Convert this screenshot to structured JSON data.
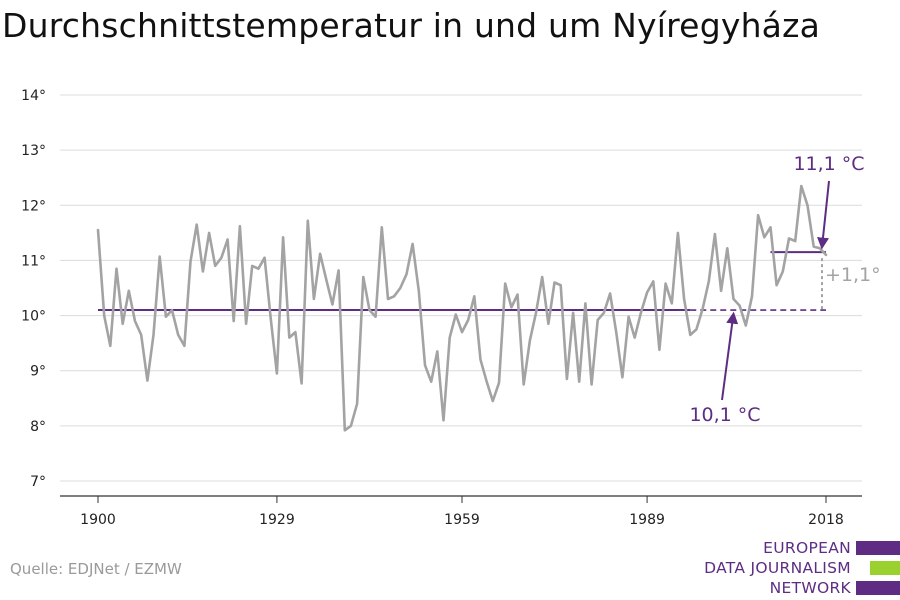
{
  "title": "Durchschnittstemperatur in und um Nyíregyháza",
  "source": "Quelle: EDJNet / EZMW",
  "logo": {
    "lines": [
      "EUROPEAN",
      "DATA JOURNALISM",
      "NETWORK"
    ],
    "colors": [
      "#5e2d83",
      "#9bd12f",
      "#5e2d83"
    ]
  },
  "colors": {
    "line": "#a3a3a3",
    "accent": "#5e2d83",
    "grid": "#dcdcdc",
    "axis": "#333333",
    "annotation_gray": "#a3a3a3"
  },
  "chart_data": {
    "type": "line",
    "title": "Durchschnittstemperatur in und um Nyíregyháza",
    "xlabel": "",
    "ylabel": "",
    "xlim": [
      1900,
      2018
    ],
    "ylim": [
      7,
      14
    ],
    "x_ticks": [
      1900,
      1929,
      1959,
      1989,
      2018
    ],
    "y_ticks": [
      7,
      8,
      9,
      10,
      11,
      12,
      13,
      14
    ],
    "y_tick_labels": [
      "7°",
      "8°",
      "9°",
      "10°",
      "11°",
      "12°",
      "13°",
      "14°"
    ],
    "grid": true,
    "series": [
      {
        "x": [
          1900,
          1901,
          1902,
          1903,
          1904,
          1905,
          1906,
          1907,
          1908,
          1909,
          1910,
          1911,
          1912,
          1913,
          1914,
          1915,
          1916,
          1917,
          1918,
          1919,
          1920,
          1921,
          1922,
          1923,
          1924,
          1925,
          1926,
          1927,
          1928,
          1929,
          1930,
          1931,
          1932,
          1933,
          1934,
          1935,
          1936,
          1937,
          1938,
          1939,
          1940,
          1941,
          1942,
          1943,
          1944,
          1945,
          1946,
          1947,
          1948,
          1949,
          1950,
          1951,
          1952,
          1953,
          1954,
          1955,
          1956,
          1957,
          1958,
          1959,
          1960,
          1961,
          1962,
          1963,
          1964,
          1965,
          1966,
          1967,
          1968,
          1969,
          1970,
          1971,
          1972,
          1973,
          1974,
          1975,
          1976,
          1977,
          1978,
          1979,
          1980,
          1981,
          1982,
          1983,
          1984,
          1985,
          1986,
          1987,
          1988,
          1989,
          1990,
          1991,
          1992,
          1993,
          1994,
          1995,
          1996,
          1997,
          1998,
          1999,
          2000,
          2001,
          2002,
          2003,
          2004,
          2005,
          2006,
          2007,
          2008,
          2009,
          2010,
          2011,
          2012,
          2013,
          2014,
          2015,
          2016,
          2017,
          2018
        ],
        "values": [
          11.55,
          10.0,
          9.45,
          10.85,
          9.85,
          10.45,
          9.9,
          9.65,
          8.82,
          9.65,
          11.07,
          9.98,
          10.1,
          9.65,
          9.45,
          10.98,
          11.65,
          10.8,
          11.5,
          10.9,
          11.05,
          11.38,
          9.9,
          11.62,
          9.85,
          10.9,
          10.85,
          11.05,
          9.95,
          8.95,
          11.42,
          9.6,
          9.7,
          8.77,
          11.72,
          10.3,
          11.12,
          10.65,
          10.2,
          10.82,
          7.92,
          8.0,
          8.4,
          10.7,
          10.1,
          9.98,
          11.6,
          10.3,
          10.35,
          10.5,
          10.75,
          11.3,
          10.45,
          9.1,
          8.8,
          9.35,
          8.1,
          9.6,
          10.02,
          9.7,
          9.92,
          10.35,
          9.2,
          8.8,
          8.45,
          8.78,
          10.58,
          10.15,
          10.38,
          8.75,
          9.55,
          10.05,
          10.7,
          9.85,
          10.6,
          10.55,
          8.85,
          10.05,
          8.8,
          10.22,
          8.75,
          9.92,
          10.05,
          10.4,
          9.7,
          8.88,
          9.98,
          9.6,
          10.05,
          10.42,
          10.62,
          9.38,
          10.58,
          10.22,
          11.5,
          10.3,
          9.65,
          9.75,
          10.12,
          10.62,
          11.48,
          10.45,
          11.22,
          10.3,
          10.18,
          9.82,
          10.35,
          11.82,
          11.42,
          11.6,
          10.55,
          10.8,
          11.4,
          11.35,
          12.35,
          12.0,
          11.25,
          11.22,
          11.1
        ]
      }
    ],
    "reference_lines": [
      {
        "label": "10,1 °C",
        "value": 10.1,
        "from": 1900,
        "to": 2018
      },
      {
        "label": "11,1 °C",
        "value": 11.15,
        "from": 2009,
        "to": 2018
      }
    ],
    "difference_label": "+1,1°"
  }
}
